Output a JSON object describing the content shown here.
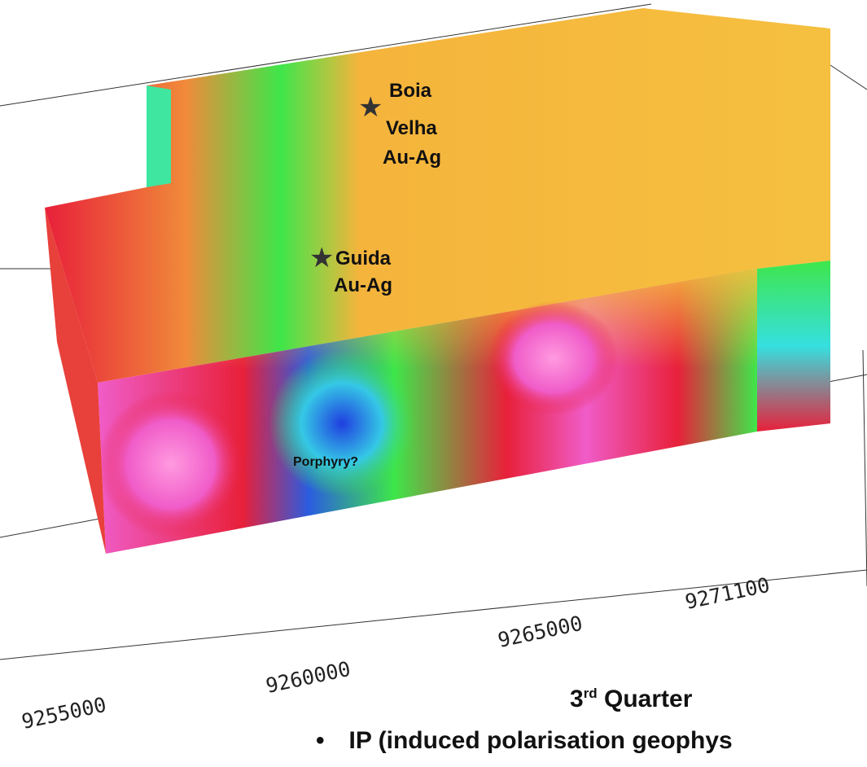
{
  "markers": [
    {
      "name": "boia-velha",
      "lines": [
        "Boia",
        "Velha",
        "Au-Ag"
      ]
    },
    {
      "name": "guida",
      "lines": [
        "Guida",
        "Au-Ag"
      ]
    }
  ],
  "annotation": "Porphyry?",
  "axis": {
    "ticks": [
      "9255000",
      "9260000",
      "9265000",
      "9271100"
    ]
  },
  "caption": {
    "title_prefix": "3",
    "title_sup": "rd",
    "title_suffix": " Quarter",
    "bullet_symbol": "•",
    "bullet_text": "IP (induced polarisation geophys"
  },
  "colors": {
    "high_magenta": "#f05cc8",
    "red": "#e8203a",
    "orange": "#f4a23c",
    "yellow": "#f5dc3a",
    "green": "#3ee64a",
    "cyan": "#35e0e0",
    "blue": "#2a5ce0"
  }
}
